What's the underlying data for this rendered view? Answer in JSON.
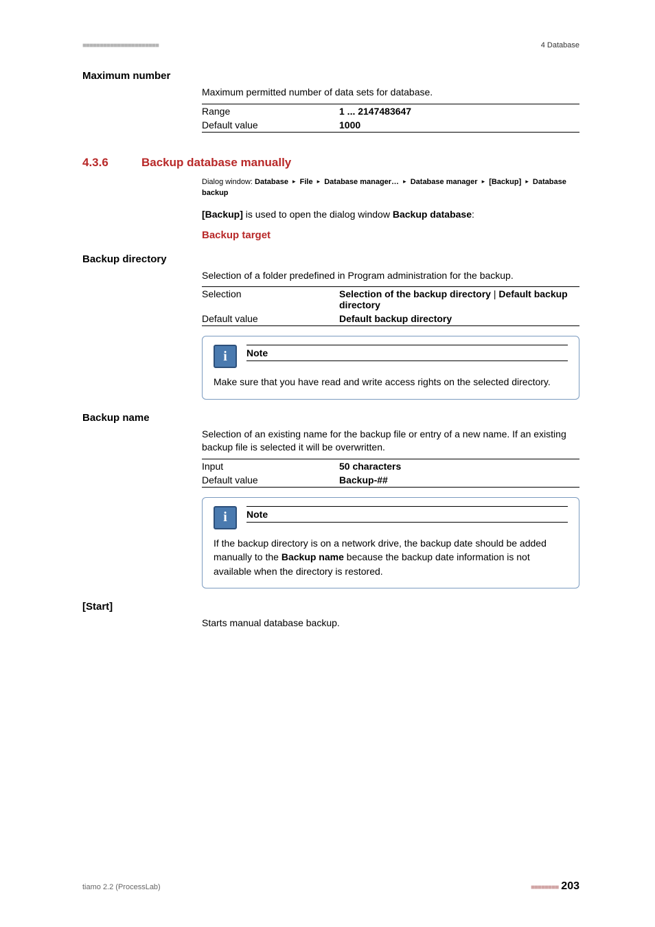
{
  "header": {
    "left_marks": "■■■■■■■■■■■■■■■■■■■■■■",
    "right": "4 Database"
  },
  "max_number": {
    "heading": "Maximum number",
    "desc": "Maximum permitted number of data sets for database.",
    "range_label": "Range",
    "range_value": "1 ... 2147483647",
    "default_label": "Default value",
    "default_value": "1000"
  },
  "section": {
    "num": "4.3.6",
    "title": "Backup database manually"
  },
  "dialog": {
    "prefix": "Dialog window: ",
    "p1": "Database",
    "p2": "File",
    "p3": "Database manager…",
    "p4": "Database manager",
    "p5": "[Backup]",
    "p6": "Database backup",
    "tri": "▸"
  },
  "backup_intro": {
    "b1": "[Backup]",
    "mid": " is used to open the dialog window ",
    "b2": "Backup database",
    "tail": ":"
  },
  "backup_target_heading": "Backup target",
  "backup_dir": {
    "heading": "Backup directory",
    "desc_pre": "Selection of a folder predefined in ",
    "desc_b": "Program administration",
    "desc_post": " for the backup.",
    "sel_label": "Selection",
    "sel_val_b1": "Selection of the backup directory",
    "sel_sep": " | ",
    "sel_val_b2": "Default backup directory",
    "def_label": "Default value",
    "def_val": "Default backup directory"
  },
  "note1": {
    "title": "Note",
    "body": "Make sure that you have read and write access rights on the selected directory.",
    "icon_char": "i"
  },
  "backup_name": {
    "heading": "Backup name",
    "desc": "Selection of an existing name for the backup file or entry of a new name. If an existing backup file is selected it will be overwritten.",
    "input_label": "Input",
    "input_val": "50 characters",
    "def_label": "Default value",
    "def_val": "Backup-##"
  },
  "note2": {
    "title": "Note",
    "body_pre": "If the backup directory is on a network drive, the backup date should be added manually to the ",
    "body_b": "Backup name",
    "body_post": " because the backup date information is not available when the directory is restored.",
    "icon_char": "i"
  },
  "start": {
    "heading": "[Start]",
    "desc": "Starts manual database backup."
  },
  "footer": {
    "left": "tiamo 2.2 (ProcessLab)",
    "dashes": "■■■■■■■■",
    "page": "203"
  }
}
